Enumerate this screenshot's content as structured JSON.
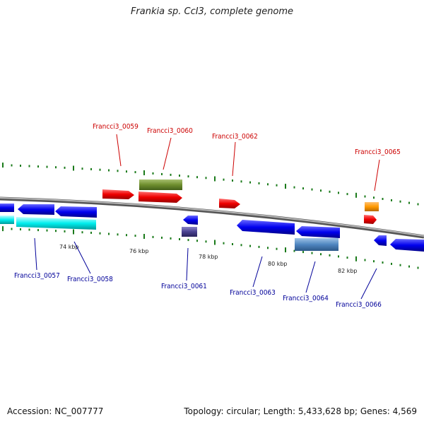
{
  "title": "Frankia sp. CcI3, complete genome",
  "footer": {
    "accession": "Accession: NC_007777",
    "summary": "Topology: circular; Length: 5,433,628 bp; Genes: 4,569"
  },
  "colors": {
    "forward_label": "#cc0000",
    "reverse_label": "#000099",
    "tick": "#1a7a1a",
    "backbone": "#8a8a8a"
  },
  "scale_ticks": [
    "74 kbp",
    "76 kbp",
    "78 kbp",
    "80 kbp",
    "82 kbp"
  ],
  "forward_labels": [
    "Francci3_0059",
    "Francci3_0060",
    "Francci3_0062",
    "Francci3_0065"
  ],
  "reverse_labels": [
    "Francci3_0057",
    "Francci3_0058",
    "Francci3_0061",
    "Francci3_0063",
    "Francci3_0064",
    "Francci3_0066"
  ]
}
